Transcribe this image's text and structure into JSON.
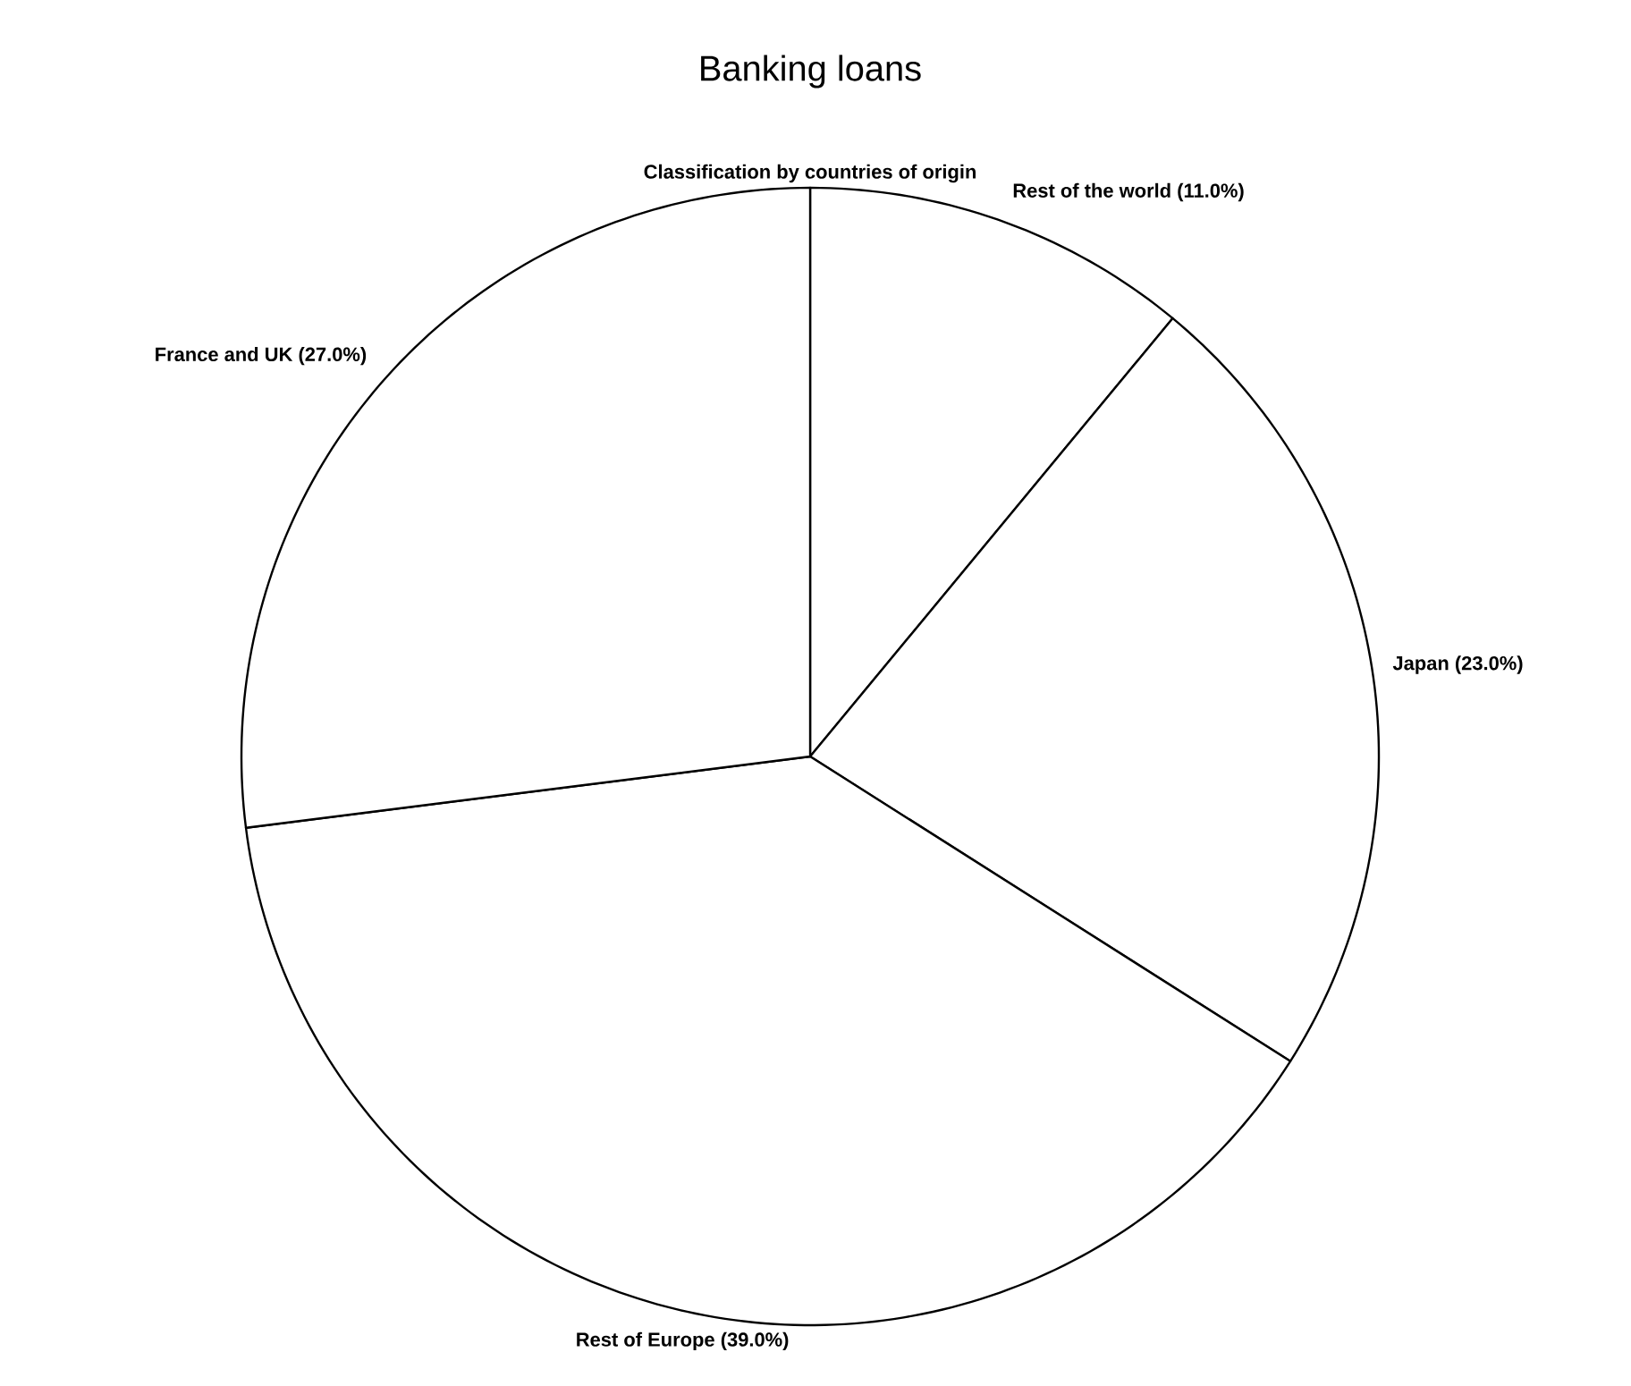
{
  "chart_data": {
    "type": "pie",
    "title": "Banking loans",
    "subtitle": "Classification by countries of origin",
    "categories": [
      "Rest of the world (11.0%)",
      "Japan (23.0%)",
      "Rest of Europe (39.0%)",
      "France and UK (27.0%)"
    ],
    "values": [
      11,
      23,
      39,
      27
    ],
    "colors": [
      "#ffffff",
      "#ffffff",
      "#ffffff",
      "#ffffff"
    ]
  }
}
